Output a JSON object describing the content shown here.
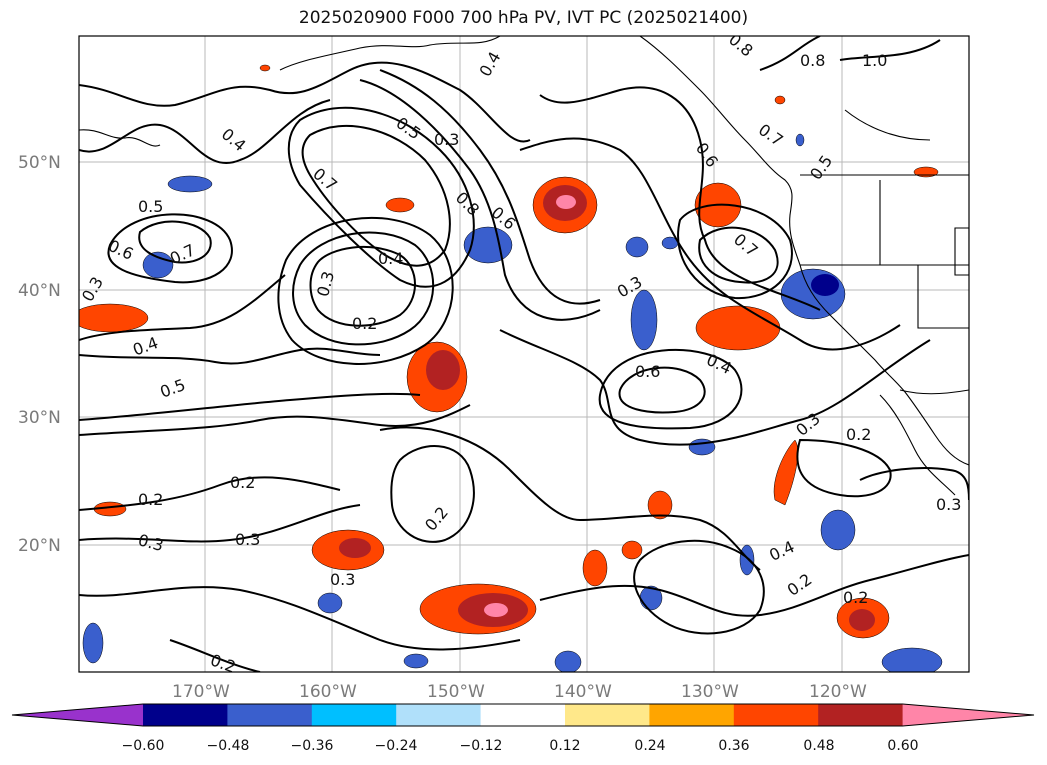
{
  "title": "2025020900 F000 700 hPa PV, IVT PC (2025021400)",
  "lat_ticks": [
    "50°N",
    "40°N",
    "30°N",
    "20°N"
  ],
  "lon_ticks": [
    "170°W",
    "160°W",
    "150°W",
    "140°W",
    "130°W",
    "120°W"
  ],
  "colorbar": {
    "ticks": [
      "−0.60",
      "−0.48",
      "−0.36",
      "−0.24",
      "−0.12",
      "0.12",
      "0.24",
      "0.36",
      "0.48",
      "0.60"
    ],
    "colors": [
      "#9932cc",
      "#00008b",
      "#3a5fcd",
      "#00bfff",
      "#b0e0fa",
      "#ffffff",
      "#ffe88a",
      "#ffa500",
      "#ff4500",
      "#b22222",
      "#ff85a8"
    ],
    "extend": "both"
  },
  "contour_labels": [
    "0.2",
    "0.3",
    "0.4",
    "0.5",
    "0.6",
    "0.7",
    "0.8",
    "1.0"
  ],
  "shading_colors": {
    "pos_light": "#ffe88a",
    "pos_mid": "#ff4500",
    "pos_strong": "#b22222",
    "pos_max": "#ff85a8",
    "neg_light": "#00bfff",
    "neg_mid": "#3a5fcd",
    "neg_strong": "#00008b"
  }
}
